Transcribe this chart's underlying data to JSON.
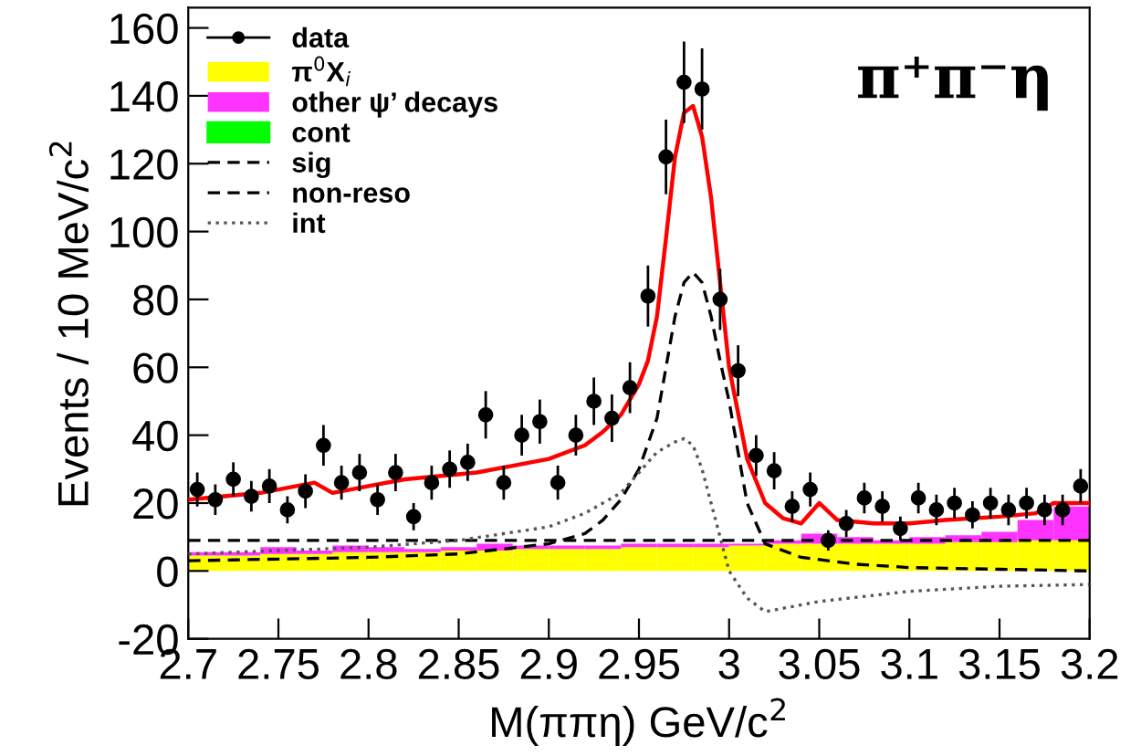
{
  "chart_data": {
    "type": "scatter",
    "xlabel": "M(ππη) GeV/c$^{2}$",
    "ylabel": "Events / 10 MeV/c$^{2}$",
    "annotations": [
      "π⁺π⁻η"
    ],
    "xlim": [
      2.7,
      3.2
    ],
    "ylim": [
      -20,
      166
    ],
    "xticks": [
      {
        "value": 2.7,
        "label": "2.7"
      },
      2.75,
      {
        "value": 2.8,
        "label": "2.8"
      },
      2.85,
      {
        "value": 2.9,
        "label": "2.9"
      },
      2.95,
      {
        "value": 3.0,
        "label": "3"
      },
      3.05,
      {
        "value": 3.1,
        "label": "3.1"
      },
      3.15,
      {
        "value": 3.2,
        "label": "3.2"
      }
    ],
    "yticks": [
      -20,
      0,
      20,
      40,
      60,
      80,
      100,
      120,
      140,
      160
    ],
    "legend": "top left",
    "grid": false,
    "stacked": true,
    "series": [
      {
        "name": "data",
        "color": "#000000",
        "marker": "circle",
        "x": [
          2.705,
          2.715,
          2.725,
          2.735,
          2.745,
          2.755,
          2.765,
          2.775,
          2.785,
          2.795,
          2.805,
          2.815,
          2.825,
          2.835,
          2.845,
          2.855,
          2.865,
          2.875,
          2.885,
          2.895,
          2.905,
          2.915,
          2.925,
          2.935,
          2.945,
          2.955,
          2.965,
          2.975,
          2.985,
          2.995,
          3.005,
          3.015,
          3.025,
          3.035,
          3.045,
          3.055,
          3.065,
          3.075,
          3.085,
          3.095,
          3.105,
          3.115,
          3.125,
          3.135,
          3.145,
          3.155,
          3.165,
          3.175,
          3.185,
          3.195
        ],
        "values": [
          24,
          21,
          27,
          22,
          25,
          18,
          23.5,
          37,
          26,
          29,
          21,
          29,
          16,
          26,
          30,
          32,
          46,
          26,
          40,
          44,
          26,
          40,
          50,
          45,
          54,
          81,
          122,
          144,
          142,
          80,
          59,
          34,
          29.5,
          19,
          24,
          9,
          14,
          21.5,
          19,
          12.5,
          21.5,
          18,
          20,
          16.5,
          20,
          18,
          20,
          18,
          18,
          25
        ],
        "errors": [
          5,
          4.5,
          5,
          4.5,
          5,
          4,
          5,
          6,
          5,
          5.5,
          4.5,
          5.5,
          4,
          5,
          5.5,
          5.5,
          7,
          5,
          6,
          6.5,
          5,
          6,
          7,
          7,
          7.5,
          9,
          11,
          12,
          12,
          9,
          7.5,
          6,
          5.5,
          4.5,
          5,
          3,
          4,
          4.5,
          4.5,
          3.5,
          4.5,
          4.5,
          4.5,
          4,
          4.5,
          4.5,
          4.5,
          4.5,
          4.5,
          5
        ]
      },
      {
        "type": "bar",
        "name": "π$^{0}$X$_{i}$",
        "color": "#ffff00",
        "x": [
          2.71,
          2.73,
          2.75,
          2.77,
          2.79,
          2.81,
          2.83,
          2.85,
          2.87,
          2.89,
          2.91,
          2.93,
          2.95,
          2.97,
          2.99,
          3.01,
          3.03,
          3.05,
          3.07,
          3.09,
          3.11,
          3.13,
          3.15,
          3.17,
          3.19
        ],
        "values": [
          4.5,
          4.5,
          5,
          5,
          5.5,
          5.5,
          5.5,
          6,
          6,
          6.5,
          6.5,
          6.5,
          7,
          7,
          7,
          7.5,
          8,
          8,
          8,
          8,
          8,
          8.5,
          8.5,
          9,
          9
        ]
      },
      {
        "type": "bar",
        "name": "other ψ’ decays",
        "color": "#ff33ff",
        "x": [
          2.71,
          2.73,
          2.75,
          2.77,
          2.79,
          2.81,
          2.83,
          2.85,
          2.87,
          2.89,
          2.91,
          2.93,
          2.95,
          2.97,
          2.99,
          3.01,
          3.03,
          3.05,
          3.07,
          3.09,
          3.11,
          3.13,
          3.15,
          3.17,
          3.19
        ],
        "values": [
          1,
          1,
          2,
          1,
          2,
          1.5,
          1,
          1,
          2,
          1,
          1,
          1,
          1,
          1,
          1,
          0.5,
          1,
          3,
          2,
          1,
          2,
          2,
          3,
          6,
          10
        ]
      },
      {
        "type": "bar",
        "name": "cont",
        "color": "#00ff00"
      },
      {
        "type": "line",
        "name": "sig",
        "color": "#000000",
        "line_style": "dashed",
        "x": [
          2.7,
          2.75,
          2.8,
          2.85,
          2.9,
          2.92,
          2.93,
          2.94,
          2.95,
          2.96,
          2.965,
          2.97,
          2.975,
          2.98,
          2.985,
          2.99,
          2.995,
          3.0,
          3.01,
          3.02,
          3.04,
          3.07,
          3.1,
          3.15,
          3.2
        ],
        "values": [
          3,
          3.5,
          4,
          5,
          8,
          11,
          15,
          21,
          30,
          45,
          60,
          75,
          85,
          88,
          85,
          75,
          62,
          50,
          20,
          8,
          4,
          2,
          1,
          0.5,
          0
        ]
      },
      {
        "type": "line",
        "name": "non-reso",
        "color": "#000000",
        "line_style": "dashed",
        "x": [
          2.7,
          2.8,
          2.9,
          3.0,
          3.1,
          3.2
        ],
        "values": [
          9,
          9,
          9,
          9,
          9,
          9
        ]
      },
      {
        "type": "line",
        "name": "int",
        "color": "#555555",
        "line_style": "dotted",
        "x": [
          2.7,
          2.75,
          2.8,
          2.85,
          2.9,
          2.92,
          2.94,
          2.95,
          2.96,
          2.97,
          2.975,
          2.98,
          2.985,
          2.99,
          2.995,
          3.0,
          3.01,
          3.02,
          3.03,
          3.05,
          3.1,
          3.15,
          3.2
        ],
        "values": [
          5,
          6,
          7,
          9,
          13,
          17,
          23,
          29,
          35,
          38,
          39,
          37,
          30,
          20,
          10,
          0,
          -8,
          -12,
          -11,
          -9,
          -6,
          -4.5,
          -4
        ]
      },
      {
        "type": "line",
        "color": "#ff0000",
        "line_style": "solid",
        "x": [
          2.7,
          2.72,
          2.74,
          2.76,
          2.77,
          2.78,
          2.8,
          2.82,
          2.84,
          2.86,
          2.88,
          2.9,
          2.92,
          2.93,
          2.94,
          2.95,
          2.955,
          2.96,
          2.965,
          2.97,
          2.975,
          2.98,
          2.985,
          2.99,
          2.995,
          3.0,
          3.01,
          3.02,
          3.03,
          3.04,
          3.05,
          3.06,
          3.08,
          3.1,
          3.12,
          3.15,
          3.17,
          3.18,
          3.2
        ],
        "values": [
          21,
          22,
          23,
          25,
          26,
          23,
          25,
          27,
          28,
          29,
          31,
          33,
          37,
          41,
          46,
          55,
          62,
          75,
          98,
          122,
          135,
          137,
          128,
          110,
          85,
          60,
          33,
          20,
          15.5,
          14,
          20,
          15,
          14,
          14,
          15,
          16,
          17,
          20,
          20
        ]
      }
    ]
  }
}
